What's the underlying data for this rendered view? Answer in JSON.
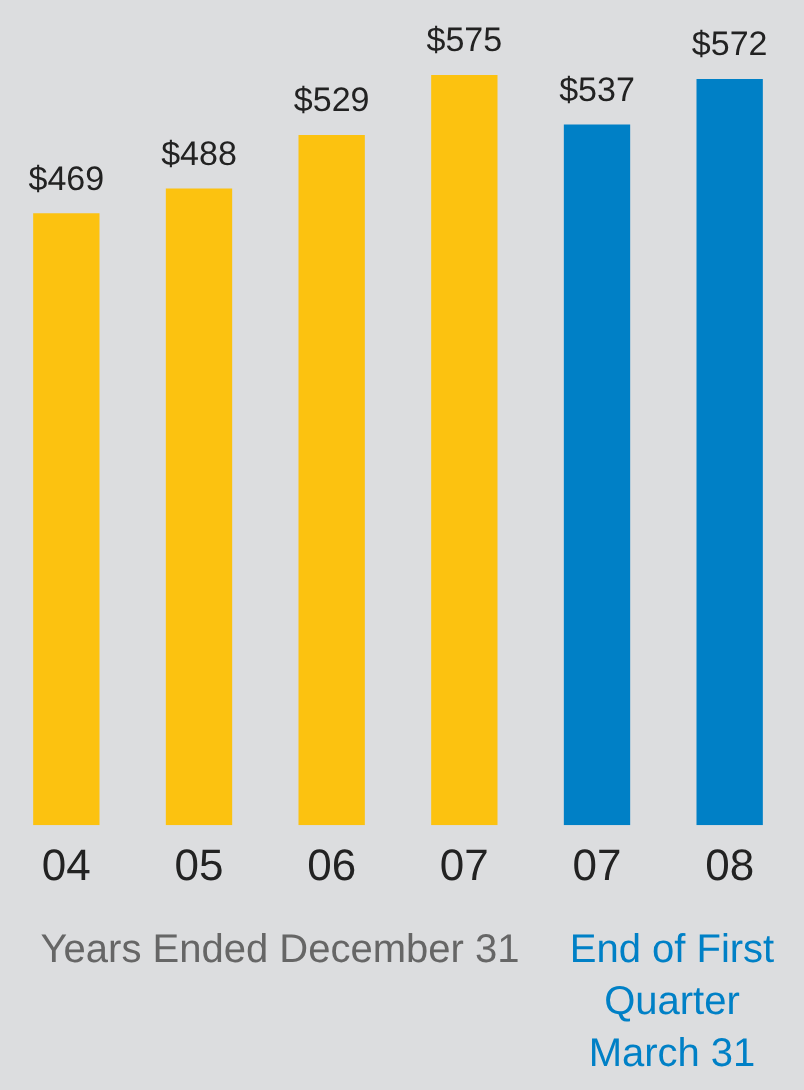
{
  "chart_data": {
    "type": "bar",
    "categories": [
      "04",
      "05",
      "06",
      "07",
      "07",
      "08"
    ],
    "values": [
      469,
      488,
      529,
      575,
      537,
      572
    ],
    "colors": [
      "#fcc210",
      "#fcc210",
      "#fcc210",
      "#fcc210",
      "#0080c6",
      "#0080c6"
    ],
    "value_labels": [
      "$469",
      "$488",
      "$529",
      "$575",
      "$537",
      "$572"
    ],
    "tick_labels": "x",
    "grid": false,
    "legend": false,
    "annotations": [
      "Years Ended December 31",
      "End of First Quarter March 31"
    ]
  }
}
